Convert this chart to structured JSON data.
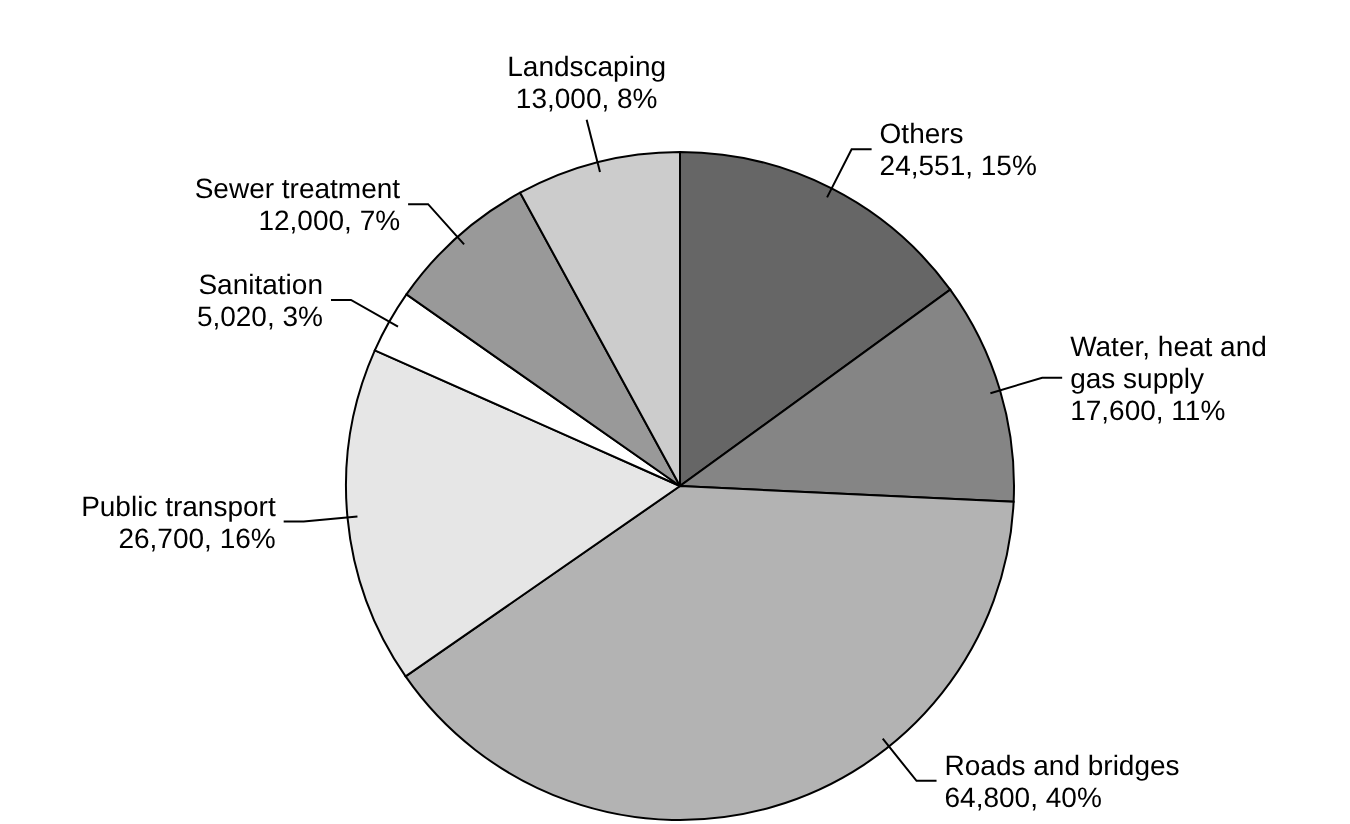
{
  "chart_data": {
    "type": "pie",
    "categories": [
      "Others",
      "Water, heat and gas supply",
      "Roads and bridges",
      "Public transport",
      "Sanitation",
      "Sewer treatment",
      "Landscaping"
    ],
    "values": [
      24551,
      17600,
      64800,
      26700,
      5020,
      12000,
      13000
    ],
    "colors": [
      "#666666",
      "#858585",
      "#b3b3b3",
      "#e6e6e6",
      "#ffffff",
      "#999999",
      "#cccccc"
    ],
    "value_labels": [
      "24,551, 15%",
      "17,600, 11%",
      "64,800, 40%",
      "26,700, 16%",
      "5,020, 3%",
      "12,000, 7%",
      "13,000, 8%"
    ]
  }
}
